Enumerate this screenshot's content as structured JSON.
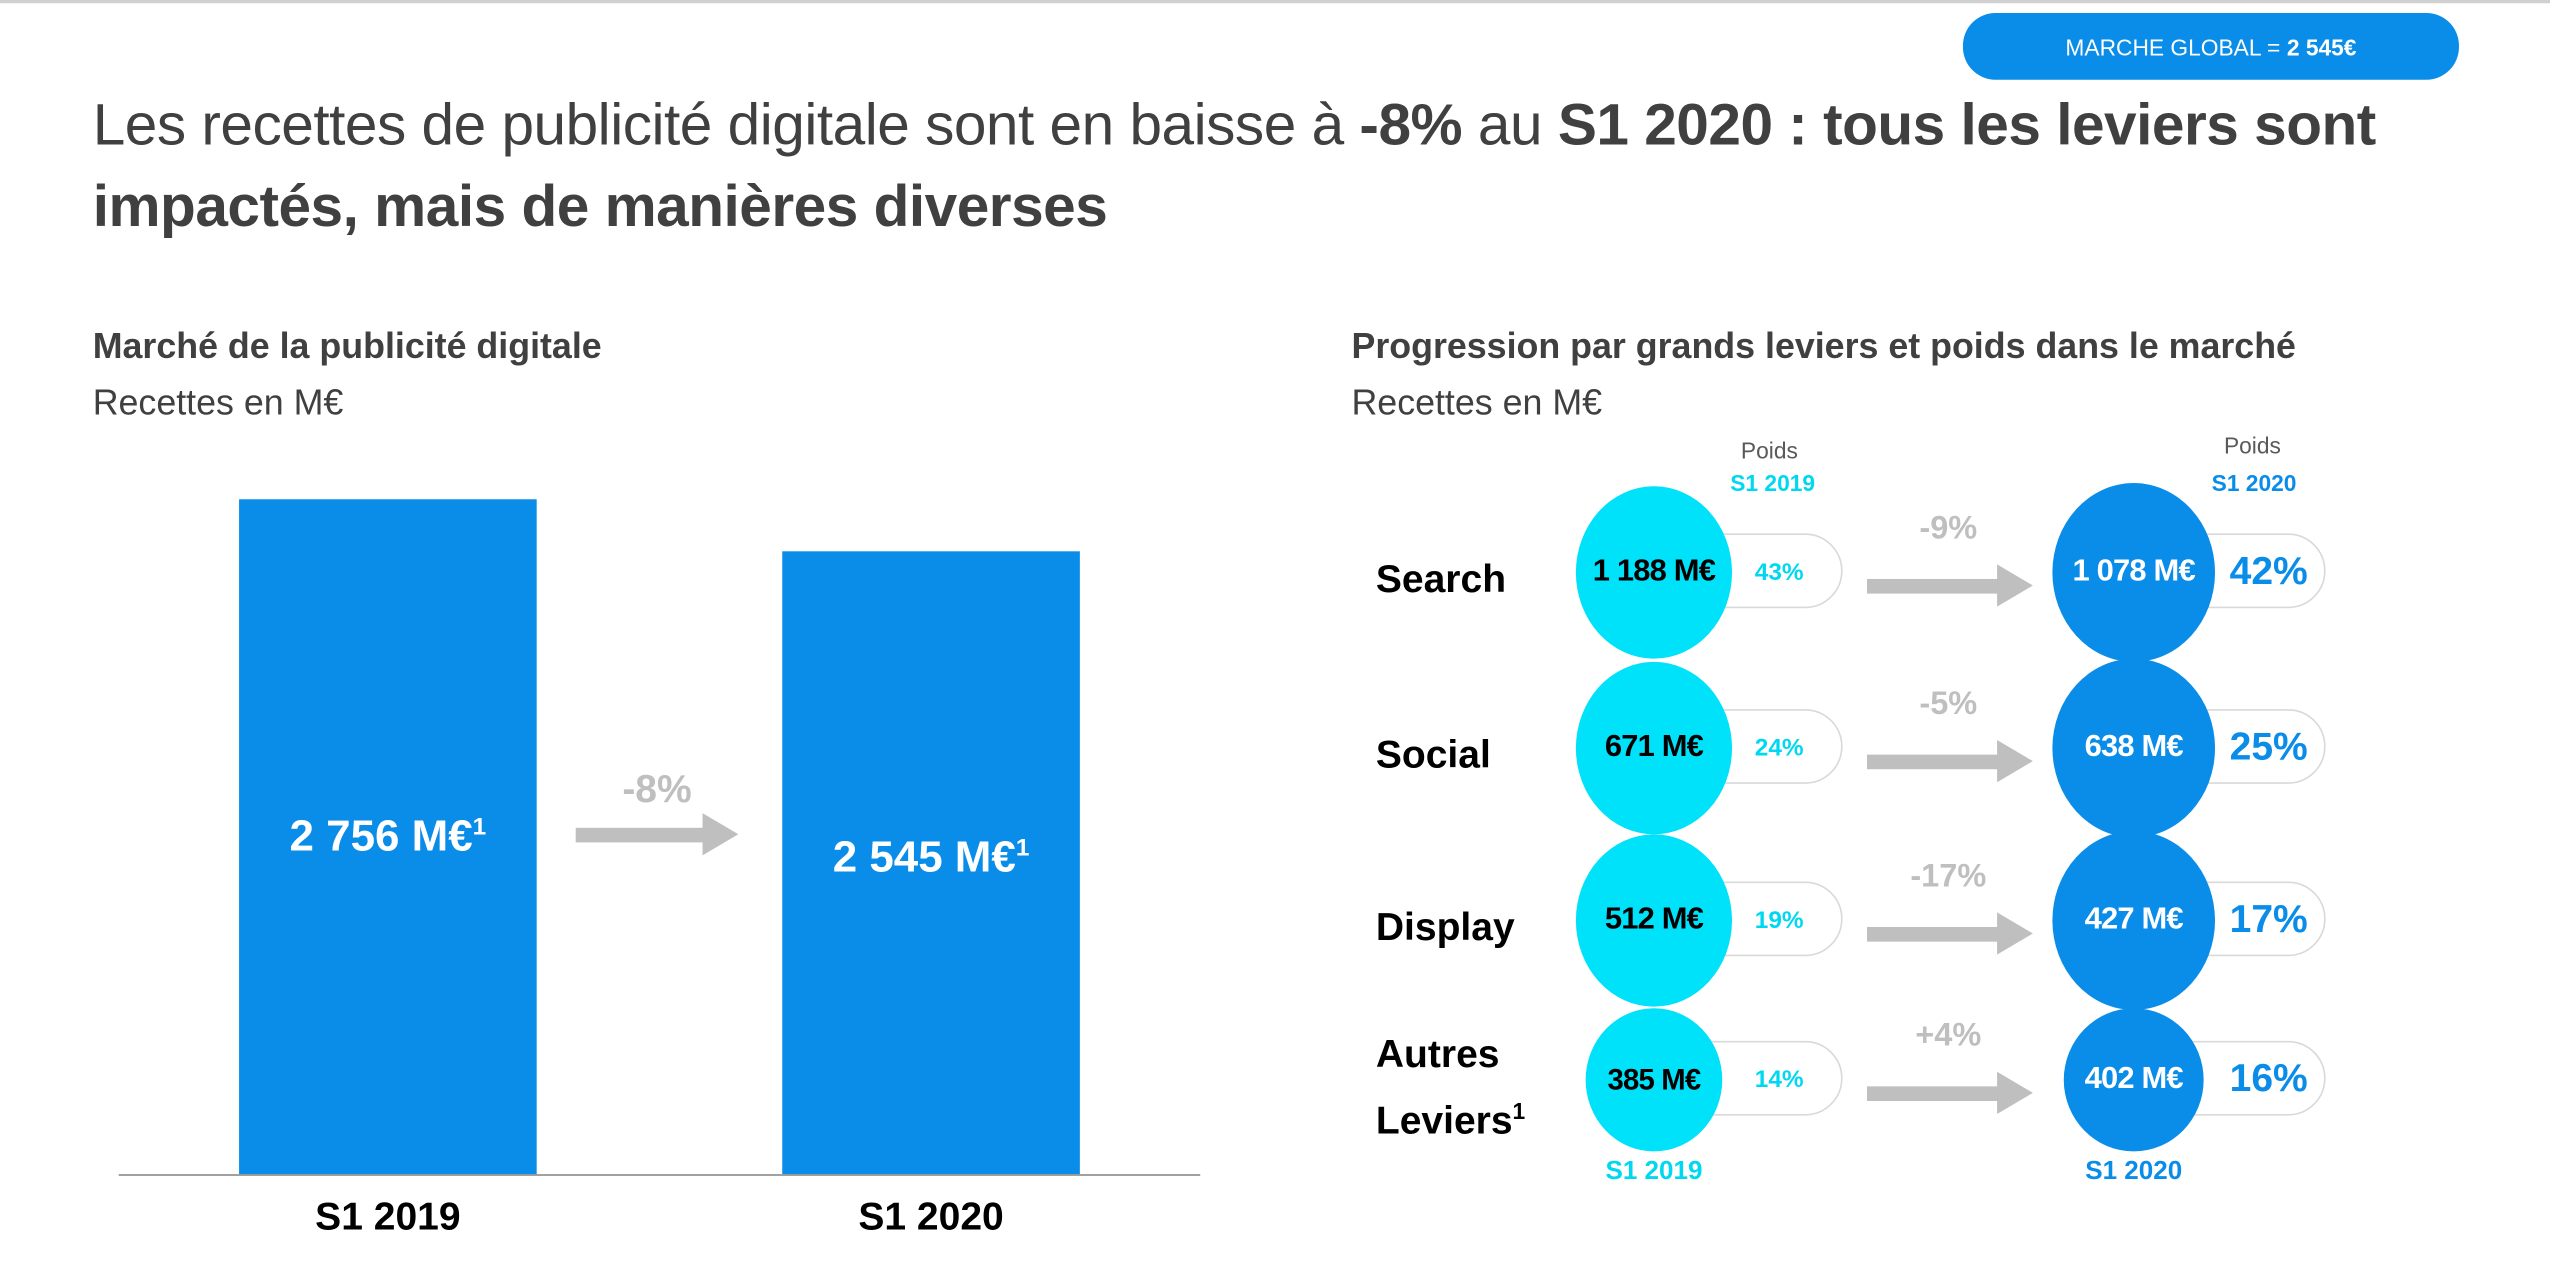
{
  "badge": {
    "label": "MARCHE GLOBAL =",
    "value": "2 545€"
  },
  "title": {
    "part1": "Les recettes de publicité digitale sont en baisse à ",
    "bold1": "-8%",
    "part2": " au ",
    "bold2": "S1 2020 : tous les leviers sont impactés, mais de manières diverses"
  },
  "colors": {
    "cyan": "#00e1fa",
    "blue": "#0a8ce9",
    "arrow": "#bfbfbf",
    "text": "#404040"
  },
  "chart_data": [
    {
      "type": "bar",
      "title": "Marché de la publicité digitale",
      "subtitle": "Recettes en M€",
      "categories": [
        "S1 2019",
        "S1 2020"
      ],
      "values": [
        2756,
        2545
      ],
      "value_labels": [
        "2 756 M€",
        "2 545 M€"
      ],
      "footnote_marker": "1",
      "change_label": "-8%",
      "ylim": [
        0,
        2756
      ]
    },
    {
      "type": "table",
      "title": "Progression par grands leviers et poids dans le marché",
      "subtitle": "Recettes en M€",
      "weight_header": "Poids",
      "period_2019": "S1 2019",
      "period_2020": "S1 2020",
      "rows": [
        {
          "label": "Search",
          "sup": "",
          "v2019": "1 188 M€",
          "w2019": "43%",
          "change": "-9%",
          "v2020": "1 078 M€",
          "w2020": "42%"
        },
        {
          "label": "Social",
          "sup": "",
          "v2019": "671 M€",
          "w2019": "24%",
          "change": "-5%",
          "v2020": "638 M€",
          "w2020": "25%"
        },
        {
          "label": "Display",
          "sup": "",
          "v2019": "512 M€",
          "w2019": "19%",
          "change": "-17%",
          "v2020": "427 M€",
          "w2020": "17%"
        },
        {
          "label": "Autres Leviers",
          "sup": "1",
          "v2019": "385 M€",
          "w2019": "14%",
          "change": "+4%",
          "v2020": "402 M€",
          "w2020": "16%"
        }
      ]
    }
  ]
}
